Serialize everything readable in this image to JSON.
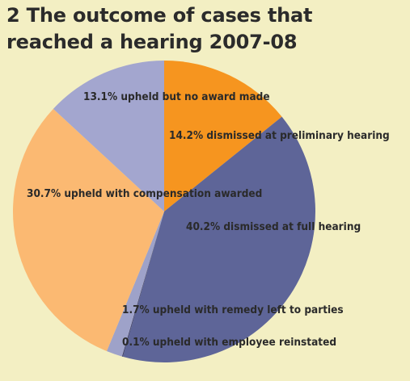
{
  "title": {
    "line1": "2  The outcome of cases that",
    "line2": "reached a hearing 2007-08"
  },
  "chart_data": {
    "type": "pie",
    "title": "2  The outcome of cases that reached a hearing 2007-08",
    "start_angle_deg": 0,
    "direction": "clockwise",
    "slices": [
      {
        "label": "14.2% dismissed at preliminary hearing",
        "value": 14.2,
        "color": "#f6951f"
      },
      {
        "label": "40.2% dismissed at full hearing",
        "value": 40.2,
        "color": "#5e6598"
      },
      {
        "label": "0.1% upheld with employee reinstated",
        "value": 0.1,
        "color": "#3d3f6b"
      },
      {
        "label": "1.7% upheld with remedy left to parties",
        "value": 1.7,
        "color": "#9ea2c9"
      },
      {
        "label": "30.7% upheld with compensation awarded",
        "value": 30.7,
        "color": "#fbb972"
      },
      {
        "label": "13.1% upheld but no award made",
        "value": 13.1,
        "color": "#a3a6cf"
      }
    ]
  }
}
